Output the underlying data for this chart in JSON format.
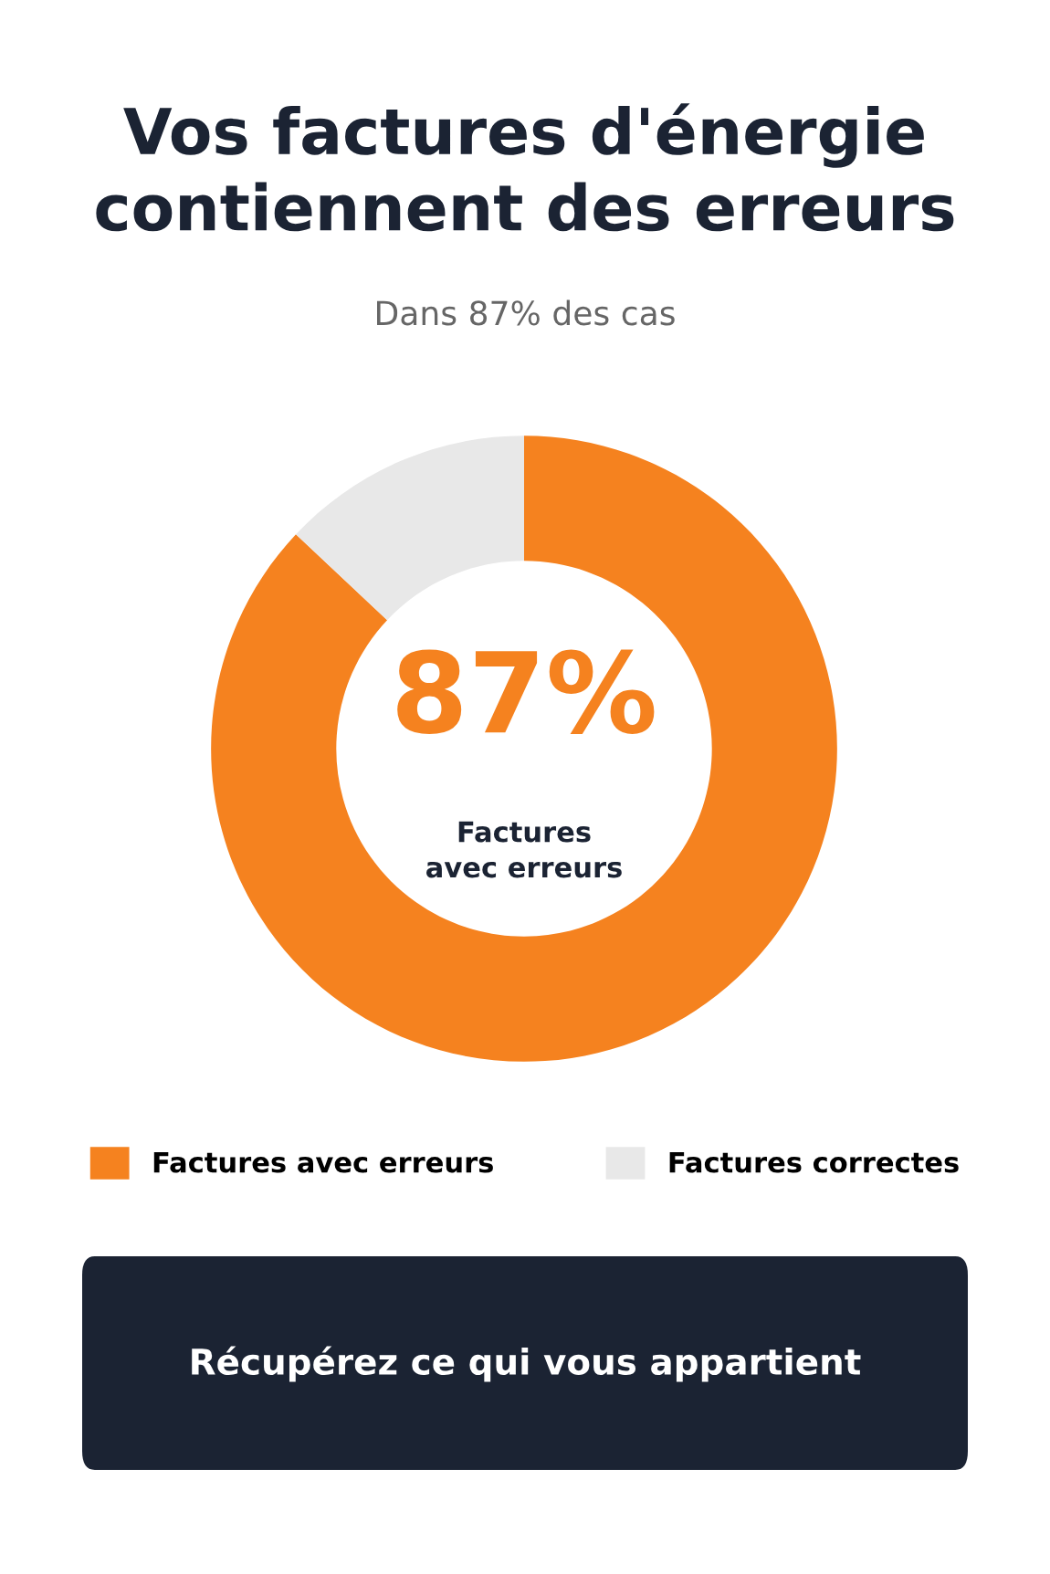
{
  "chart_data": {
    "type": "donut",
    "title": "Vos factures d'énergie\ncontiennent des erreurs",
    "subtitle": "Dans 87% des cas",
    "categories": [
      "Factures avec erreurs",
      "Factures correctes"
    ],
    "values": [
      87,
      13
    ],
    "colors": [
      "#f5821f",
      "#e8e8e8"
    ],
    "value_labels": [
      "87%",
      null
    ],
    "annotations": [
      "Factures\navec erreurs",
      "Récupérez ce qui vous appartient"
    ],
    "legend": "bottom"
  }
}
